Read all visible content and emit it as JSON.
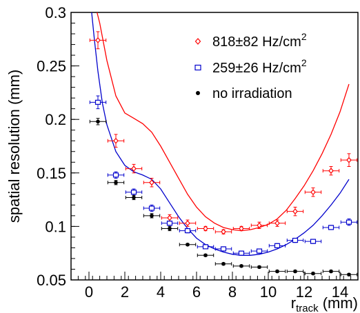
{
  "chart_data": {
    "type": "scatter",
    "xlabel": {
      "main": "r",
      "sub": "track",
      "unit": " (mm)"
    },
    "ylabel": "spatial resolution (mm)",
    "xlim": [
      -1,
      15
    ],
    "ylim": [
      0.05,
      0.3
    ],
    "x_ticks": [
      0,
      2,
      4,
      6,
      8,
      10,
      12,
      14
    ],
    "y_ticks": [
      0.05,
      0.1,
      0.15,
      0.2,
      0.25,
      0.3
    ],
    "y_tick_labels": [
      "0.05",
      "0.1",
      "0.15",
      "0.2",
      "0.25",
      "0.3"
    ],
    "x_error": 0.45,
    "grid": false,
    "legend_position": "top-right",
    "series": [
      {
        "name": "818±82 Hz/cm²",
        "label_main": "818±82 Hz/cm",
        "label_sup": "2",
        "color": "#ff0000",
        "marker": "diamond",
        "x": [
          0.5,
          1.5,
          2.5,
          3.5,
          4.5,
          5.5,
          6.5,
          7.5,
          8.5,
          9.5,
          10.5,
          11.5,
          12.5,
          13.5,
          14.5
        ],
        "y": [
          0.274,
          0.18,
          0.154,
          0.141,
          0.108,
          0.103,
          0.098,
          0.095,
          0.098,
          0.101,
          0.103,
          0.114,
          0.132,
          0.152,
          0.162
        ],
        "yerr": [
          0.008,
          0.006,
          0.004,
          0.004,
          0.003,
          0.003,
          0.002,
          0.002,
          0.002,
          0.003,
          0.003,
          0.004,
          0.004,
          0.004,
          0.006
        ],
        "fit_x": [
          0.45,
          0.6,
          1.0,
          1.5,
          2.0,
          2.5,
          3.0,
          3.5,
          4.0,
          4.5,
          5.0,
          5.5,
          6.0,
          6.5,
          7.0,
          7.5,
          8.0,
          8.5,
          9.0,
          9.5,
          10.0,
          10.5,
          11.0,
          11.5,
          12.0,
          12.5,
          13.0,
          13.5,
          14.0,
          14.5
        ],
        "fit_y": [
          0.3,
          0.29,
          0.255,
          0.222,
          0.206,
          0.201,
          0.196,
          0.188,
          0.175,
          0.16,
          0.145,
          0.13,
          0.118,
          0.109,
          0.103,
          0.099,
          0.097,
          0.096,
          0.097,
          0.099,
          0.102,
          0.107,
          0.115,
          0.126,
          0.138,
          0.152,
          0.168,
          0.186,
          0.207,
          0.233
        ]
      },
      {
        "name": "259±26 Hz/cm²",
        "label_main": "259±26 Hz/cm",
        "label_sup": "2",
        "color": "#0000cc",
        "marker": "square",
        "x": [
          0.5,
          1.5,
          2.5,
          3.5,
          4.5,
          5.5,
          6.5,
          7.5,
          8.5,
          9.5,
          10.5,
          11.5,
          12.5,
          13.5,
          14.5
        ],
        "y": [
          0.216,
          0.148,
          0.132,
          0.117,
          0.103,
          0.096,
          0.081,
          0.079,
          0.075,
          0.077,
          0.082,
          0.087,
          0.086,
          0.099,
          0.104
        ],
        "yerr": [
          0.006,
          0.003,
          0.003,
          0.003,
          0.002,
          0.002,
          0.002,
          0.002,
          0.002,
          0.002,
          0.002,
          0.002,
          0.002,
          0.002,
          0.003
        ],
        "fit_x": [
          0.15,
          0.3,
          0.5,
          0.75,
          1.0,
          1.5,
          2.0,
          2.5,
          3.0,
          3.5,
          4.0,
          4.5,
          5.0,
          5.5,
          6.0,
          6.5,
          7.0,
          7.5,
          8.0,
          8.5,
          9.0,
          9.5,
          10.0,
          10.5,
          11.0,
          11.5,
          12.0,
          12.5,
          13.0,
          13.5,
          14.0,
          14.5
        ],
        "fit_y": [
          0.3,
          0.275,
          0.245,
          0.215,
          0.195,
          0.17,
          0.157,
          0.151,
          0.148,
          0.144,
          0.135,
          0.122,
          0.109,
          0.098,
          0.089,
          0.083,
          0.079,
          0.076,
          0.074,
          0.073,
          0.073,
          0.074,
          0.076,
          0.079,
          0.083,
          0.088,
          0.094,
          0.101,
          0.11,
          0.12,
          0.131,
          0.144
        ]
      },
      {
        "name": "no irradiation",
        "color": "#000000",
        "marker": "circle",
        "x": [
          0.5,
          1.5,
          2.5,
          3.5,
          4.5,
          5.5,
          6.5,
          7.5,
          8.5,
          9.5,
          10.5,
          11.5,
          12.5,
          13.5,
          14.5
        ],
        "y": [
          0.198,
          0.141,
          0.127,
          0.11,
          0.098,
          0.083,
          0.073,
          0.065,
          0.063,
          0.062,
          0.058,
          0.058,
          0.056,
          0.058,
          0.055
        ],
        "yerr": [
          0.003,
          0.002,
          0.002,
          0.002,
          0.002,
          0.001,
          0.001,
          0.001,
          0.001,
          0.001,
          0.001,
          0.001,
          0.001,
          0.001,
          0.001
        ]
      }
    ]
  }
}
